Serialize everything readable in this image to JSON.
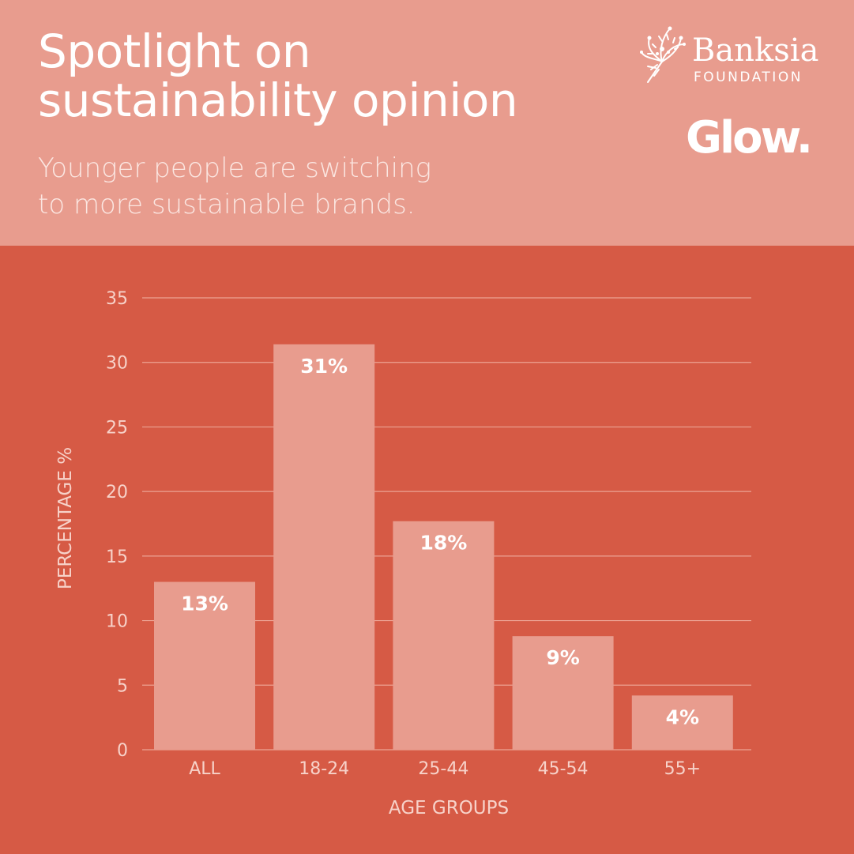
{
  "header": {
    "title_lines": [
      "Spotlight on",
      "sustainability opinion"
    ],
    "subtitle_lines": [
      "Younger people are switching",
      "to more sustainable brands."
    ]
  },
  "logos": {
    "banksia_name": "Banksia",
    "banksia_sub": "FOUNDATION",
    "glow": "Glow."
  },
  "colors": {
    "header_bg": "#e89c8e",
    "chart_bg": "#d65a45",
    "bar": "#e89c8e",
    "text_light": "#f7d2c9"
  },
  "chart_data": {
    "type": "bar",
    "categories": [
      "ALL",
      "18-24",
      "25-44",
      "45-54",
      "55+"
    ],
    "values": [
      13,
      31.4,
      17.7,
      8.8,
      4.2
    ],
    "data_labels": [
      "13%",
      "31%",
      "18%",
      "9%",
      "4%"
    ],
    "xlabel": "AGE GROUPS",
    "ylabel": "PERCENTAGE %",
    "ylim": [
      0,
      35
    ],
    "yticks": [
      0,
      5,
      10,
      15,
      20,
      25,
      30,
      35
    ],
    "grid": true,
    "legend": "none"
  }
}
